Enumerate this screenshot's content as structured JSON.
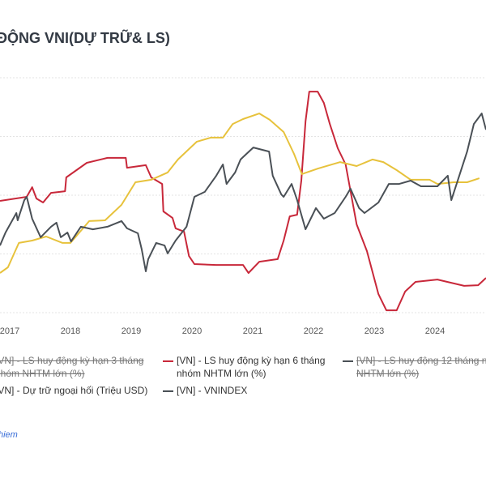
{
  "title": "ĐỘNG VNI(DỰ TRỮ& LS)",
  "legend": [
    {
      "line1": "[VN] - LS huy động kỳ hạn 3 tháng",
      "line2": "nhóm NHTM lớn (%)",
      "hidden": true
    },
    {
      "line1": "[VN] - LS huy động kỳ hạn 6 tháng",
      "line2": "nhóm NHTM lớn (%)",
      "hidden": false,
      "color": "#c8283a"
    },
    {
      "line1": "[VN] - LS huy động 12 tháng nh",
      "line2": "NHTM lớn (%)",
      "hidden": true,
      "color": "#4a5056"
    },
    {
      "line1": "[VN] - Dự trữ ngoại hối (Triệu USD)",
      "hidden": false,
      "color": "#e7c23c"
    },
    {
      "line1": "[VN] - VNINDEX",
      "hidden": false,
      "color": "#4a5056"
    }
  ],
  "footer": "hiem",
  "chart_data": {
    "type": "line",
    "title": "ĐỘNG VNI(DỰ TRỮ& LS)",
    "x_ticks": [
      "2017",
      "2018",
      "2019",
      "2020",
      "2021",
      "2022",
      "2023",
      "2024",
      "2"
    ],
    "ylim": [
      0,
      100
    ],
    "grid": true,
    "legend_placement": "bottom",
    "series": [
      {
        "name": "[VN] - LS huy động kỳ hạn 6 tháng nhóm NHTM lớn (%)",
        "color": "#c8283a",
        "x": [
          2016.84,
          2017.28,
          2017.37,
          2017.44,
          2017.55,
          2017.68,
          2017.91,
          2017.93,
          2018.27,
          2018.61,
          2018.91,
          2018.93,
          2019.24,
          2019.33,
          2019.51,
          2019.53,
          2019.68,
          2019.73,
          2019.87,
          2019.95,
          2020.04,
          2020.4,
          2020.84,
          2020.93,
          2021.11,
          2021.41,
          2021.51,
          2021.61,
          2021.73,
          2021.8,
          2021.87,
          2021.93,
          2022.07,
          2022.17,
          2022.27,
          2022.4,
          2022.53,
          2022.71,
          2022.88,
          2023.07,
          2023.2,
          2023.37,
          2023.51,
          2023.68,
          2024.04,
          2024.48,
          2024.71,
          2024.84
        ],
        "y": [
          47.6,
          49.3,
          53.4,
          48.6,
          46.9,
          51.0,
          51.7,
          57.6,
          63.8,
          65.9,
          65.9,
          61.7,
          62.8,
          57.6,
          54.8,
          43.1,
          40.3,
          35.9,
          34.5,
          24.1,
          20.7,
          20.3,
          20.3,
          16.9,
          21.7,
          22.8,
          30.7,
          41.0,
          41.7,
          56.2,
          81.4,
          94.1,
          94.1,
          89.3,
          80.3,
          70.0,
          63.1,
          37.6,
          26.2,
          7.9,
          1.0,
          1.0,
          9.0,
          13.1,
          14.1,
          11.4,
          11.7,
          14.8
        ]
      },
      {
        "name": "[VN] - Dự trữ ngoại hối (Triệu USD)",
        "color": "#e7c23c",
        "x": [
          2016.84,
          2016.97,
          2017.15,
          2017.37,
          2017.6,
          2017.87,
          2018.0,
          2018.31,
          2018.57,
          2018.84,
          2019.07,
          2019.33,
          2019.6,
          2019.77,
          2020.08,
          2020.31,
          2020.51,
          2020.67,
          2020.84,
          2021.11,
          2021.28,
          2021.51,
          2021.68,
          2021.81,
          2022.08,
          2022.44,
          2022.71,
          2022.97,
          2023.15,
          2023.37,
          2023.6,
          2023.91,
          2024.04,
          2024.31,
          2024.53,
          2024.73
        ],
        "y": [
          16.9,
          19.3,
          29.7,
          30.7,
          32.4,
          29.7,
          29.7,
          39.0,
          39.3,
          45.9,
          55.5,
          56.6,
          59.7,
          65.2,
          72.8,
          74.5,
          74.5,
          80.3,
          82.4,
          84.8,
          82.1,
          76.9,
          67.6,
          59.0,
          61.4,
          64.1,
          62.4,
          65.2,
          64.1,
          60.7,
          56.6,
          56.6,
          54.8,
          55.5,
          55.5,
          57.2
        ]
      },
      {
        "name": "[VN] - VNINDEX",
        "color": "#4a5056",
        "x": [
          2016.84,
          2016.93,
          2017.11,
          2017.13,
          2017.24,
          2017.28,
          2017.37,
          2017.51,
          2017.68,
          2017.77,
          2017.84,
          2017.95,
          2018.01,
          2018.17,
          2018.37,
          2018.61,
          2018.84,
          2018.93,
          2019.11,
          2019.17,
          2019.24,
          2019.28,
          2019.41,
          2019.55,
          2019.6,
          2019.73,
          2019.91,
          2020.04,
          2020.21,
          2020.4,
          2020.51,
          2020.57,
          2020.71,
          2020.8,
          2020.84,
          2021.01,
          2021.27,
          2021.33,
          2021.47,
          2021.51,
          2021.64,
          2021.73,
          2021.87,
          2022.04,
          2022.17,
          2022.35,
          2022.53,
          2022.61,
          2022.75,
          2022.84,
          2023.07,
          2023.24,
          2023.41,
          2023.6,
          2023.77,
          2024.04,
          2024.21,
          2024.27,
          2024.4,
          2024.53,
          2024.64,
          2024.77,
          2024.84
        ],
        "y": [
          28.6,
          34.1,
          42.4,
          39.3,
          47.9,
          49.3,
          40.0,
          32.1,
          36.6,
          38.3,
          32.1,
          34.1,
          30.3,
          36.6,
          35.5,
          36.6,
          39.0,
          35.9,
          33.8,
          27.2,
          17.6,
          22.8,
          29.7,
          28.6,
          25.2,
          30.7,
          36.6,
          49.3,
          51.4,
          58.3,
          63.1,
          54.8,
          59.7,
          65.2,
          66.2,
          70.3,
          68.6,
          58.3,
          50.3,
          49.3,
          54.8,
          48.0,
          35.5,
          44.5,
          40.0,
          42.4,
          49.3,
          52.8,
          44.5,
          42.4,
          46.9,
          54.8,
          54.8,
          56.2,
          53.8,
          53.8,
          58.3,
          47.9,
          58.3,
          68.6,
          80.3,
          84.8,
          77.9
        ]
      }
    ]
  }
}
